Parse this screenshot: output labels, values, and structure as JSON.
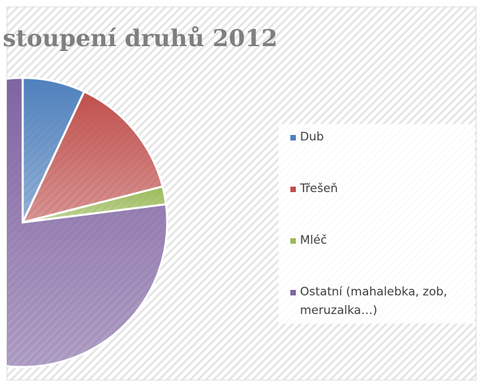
{
  "chart_data": {
    "type": "pie",
    "title": "stoupení druhů 2012",
    "categories": [
      "Dub",
      "Třešeň",
      "Mléč",
      "Ostatní (mahalebka, zob, meruzalka…)"
    ],
    "values": [
      7,
      14,
      2,
      77
    ],
    "colors": [
      "#4f81bd",
      "#c0504d",
      "#9bbb59",
      "#8064a2"
    ],
    "legend": "right"
  }
}
